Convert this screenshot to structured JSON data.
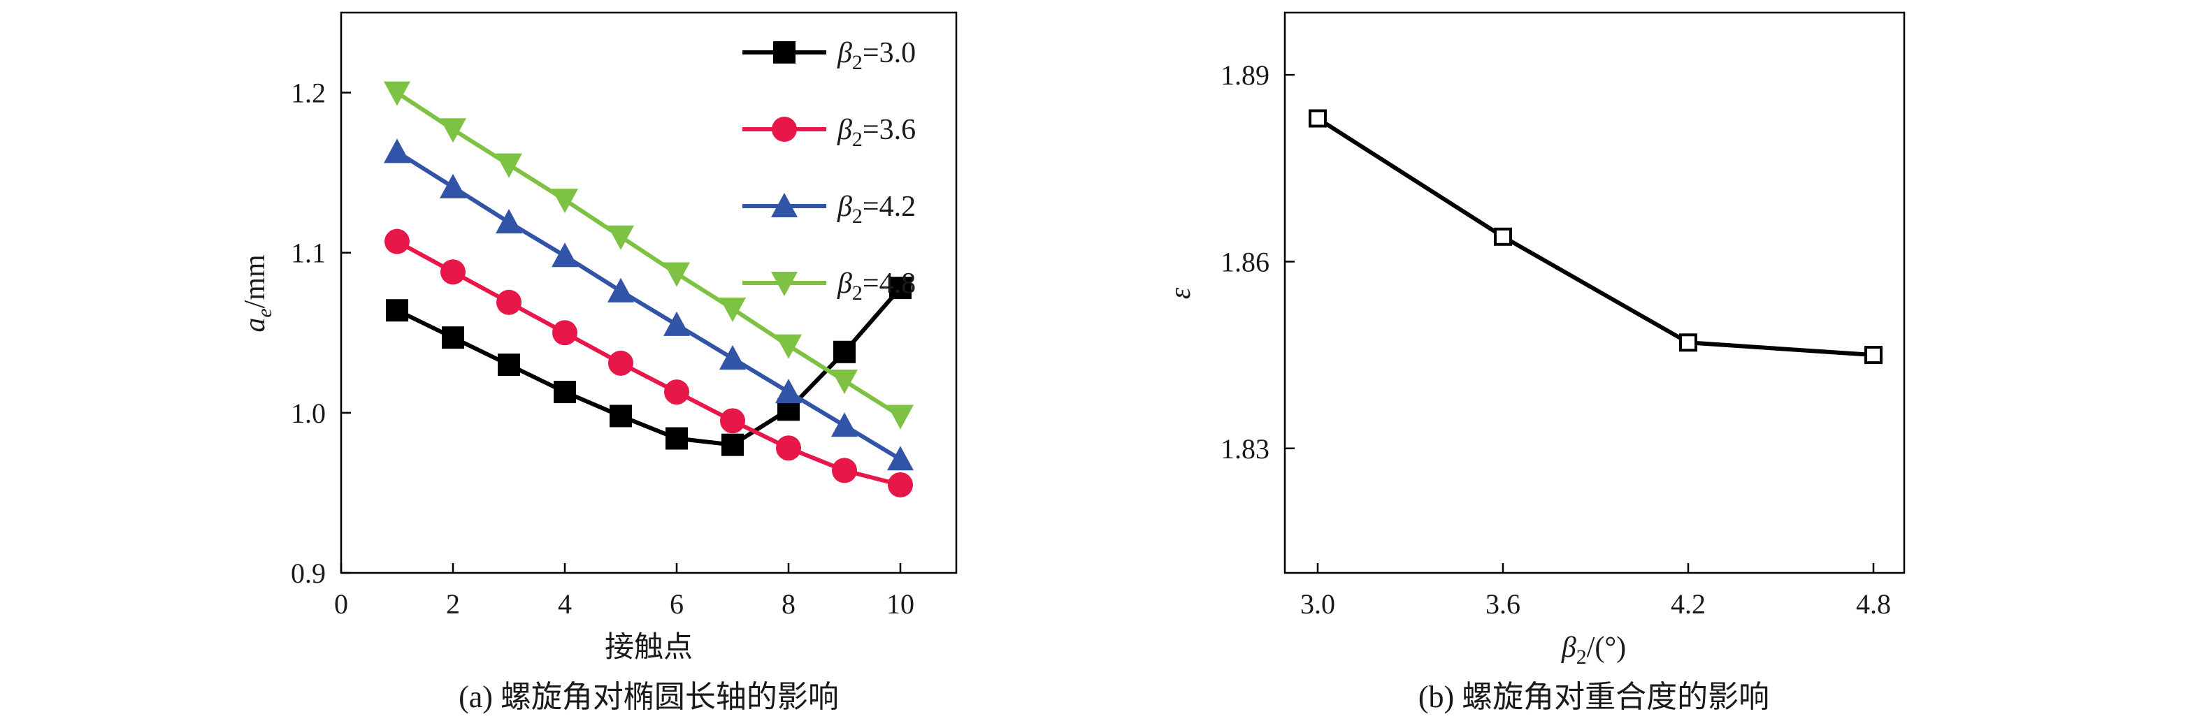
{
  "chart_data": [
    {
      "type": "line",
      "caption": "(a) 螺旋角对椭圆长轴的影响",
      "xlabel": "接触点",
      "ylabel_main": "a",
      "ylabel_sub": "e",
      "ylabel_unit": "/mm",
      "xlim": [
        0,
        11
      ],
      "ylim": [
        0.9,
        1.25
      ],
      "xticks": [
        0,
        2,
        4,
        6,
        8,
        10
      ],
      "yticks": [
        0.9,
        1.0,
        1.1,
        1.2
      ],
      "x": [
        1,
        2,
        3,
        4,
        5,
        6,
        7,
        8,
        9,
        10
      ],
      "legend_position": "top-right",
      "series": [
        {
          "name_main": "β",
          "name_sub": "2",
          "name_value": "=3.0",
          "color": "#000000",
          "marker": "square",
          "values": [
            1.064,
            1.047,
            1.03,
            1.013,
            0.998,
            0.984,
            0.98,
            1.002,
            1.038,
            1.078
          ]
        },
        {
          "name_main": "β",
          "name_sub": "2",
          "name_value": "=3.6",
          "color": "#e8174a",
          "marker": "circle",
          "values": [
            1.107,
            1.088,
            1.069,
            1.05,
            1.031,
            1.013,
            0.995,
            0.978,
            0.964,
            0.955
          ]
        },
        {
          "name_main": "β",
          "name_sub": "2",
          "name_value": "=4.2",
          "color": "#3153a8",
          "marker": "triangle-up",
          "values": [
            1.163,
            1.141,
            1.119,
            1.098,
            1.076,
            1.055,
            1.034,
            1.013,
            0.992,
            0.971
          ]
        },
        {
          "name_main": "β",
          "name_sub": "2",
          "name_value": "=4.8",
          "color": "#7dc242",
          "marker": "triangle-down",
          "values": [
            1.2,
            1.177,
            1.155,
            1.133,
            1.11,
            1.087,
            1.065,
            1.042,
            1.02,
            0.998
          ]
        }
      ]
    },
    {
      "type": "line",
      "caption": "(b) 螺旋角对重合度的影响",
      "xlabel_main": "β",
      "xlabel_sub": "2",
      "xlabel_unit": "/(°)",
      "ylabel": "ε",
      "categories": [
        "3.0",
        "3.6",
        "4.2",
        "4.8"
      ],
      "ylim": [
        1.81,
        1.9
      ],
      "yticks": [
        1.83,
        1.86,
        1.89
      ],
      "series": [
        {
          "color": "#000000",
          "marker": "open-square",
          "values": [
            1.883,
            1.864,
            1.847,
            1.845
          ]
        }
      ]
    }
  ]
}
